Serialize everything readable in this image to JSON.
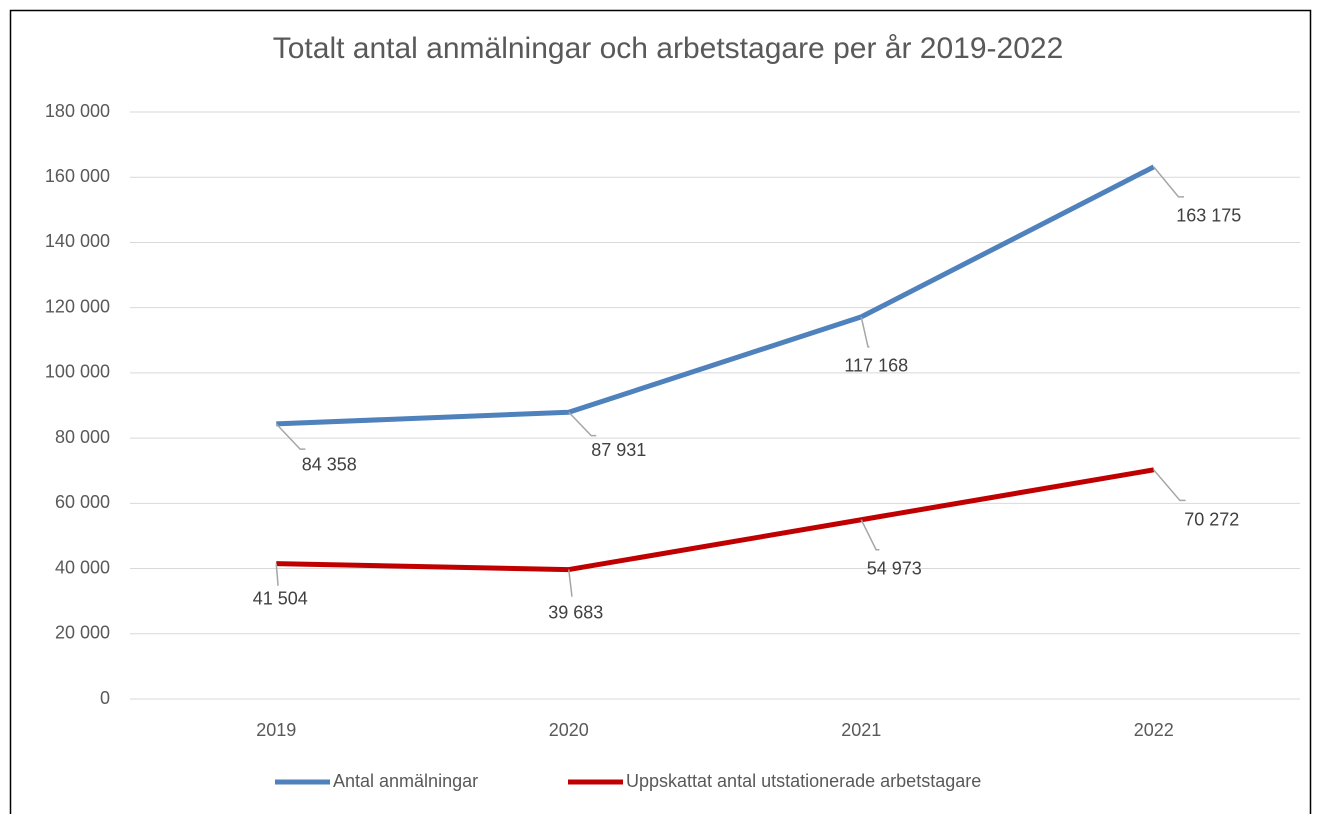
{
  "chart_data": {
    "type": "line",
    "title": "Totalt antal anmälningar och arbetstagare per år 2019-2022",
    "categories": [
      "2019",
      "2020",
      "2021",
      "2022"
    ],
    "series": [
      {
        "name": "Antal anmälningar",
        "color": "#4f81bd",
        "values": [
          84358,
          87931,
          117168,
          163175
        ],
        "value_labels": [
          "84 358",
          "87 931",
          "117 168",
          "163 175"
        ]
      },
      {
        "name": "Uppskattat antal utstationerade arbetstagare",
        "color": "#c00000",
        "values": [
          41504,
          39683,
          54973,
          70272
        ],
        "value_labels": [
          "41 504",
          "39 683",
          "54 973",
          "70 272"
        ]
      }
    ],
    "ylim": [
      0,
      180000
    ],
    "yticks": [
      0,
      {
        "value": 20000,
        "label": "20 000"
      },
      {
        "value": 40000,
        "label": "40 000"
      },
      {
        "value": 60000,
        "label": "60 000"
      },
      {
        "value": 80000,
        "label": "80 000"
      },
      {
        "value": 100000,
        "label": "100 000"
      },
      {
        "value": 120000,
        "label": "120 000"
      },
      {
        "value": 140000,
        "label": "140 000"
      },
      {
        "value": 160000,
        "label": "160 000"
      },
      {
        "value": 180000,
        "label": "180 000"
      }
    ],
    "grid": true,
    "legend": "bottom"
  }
}
